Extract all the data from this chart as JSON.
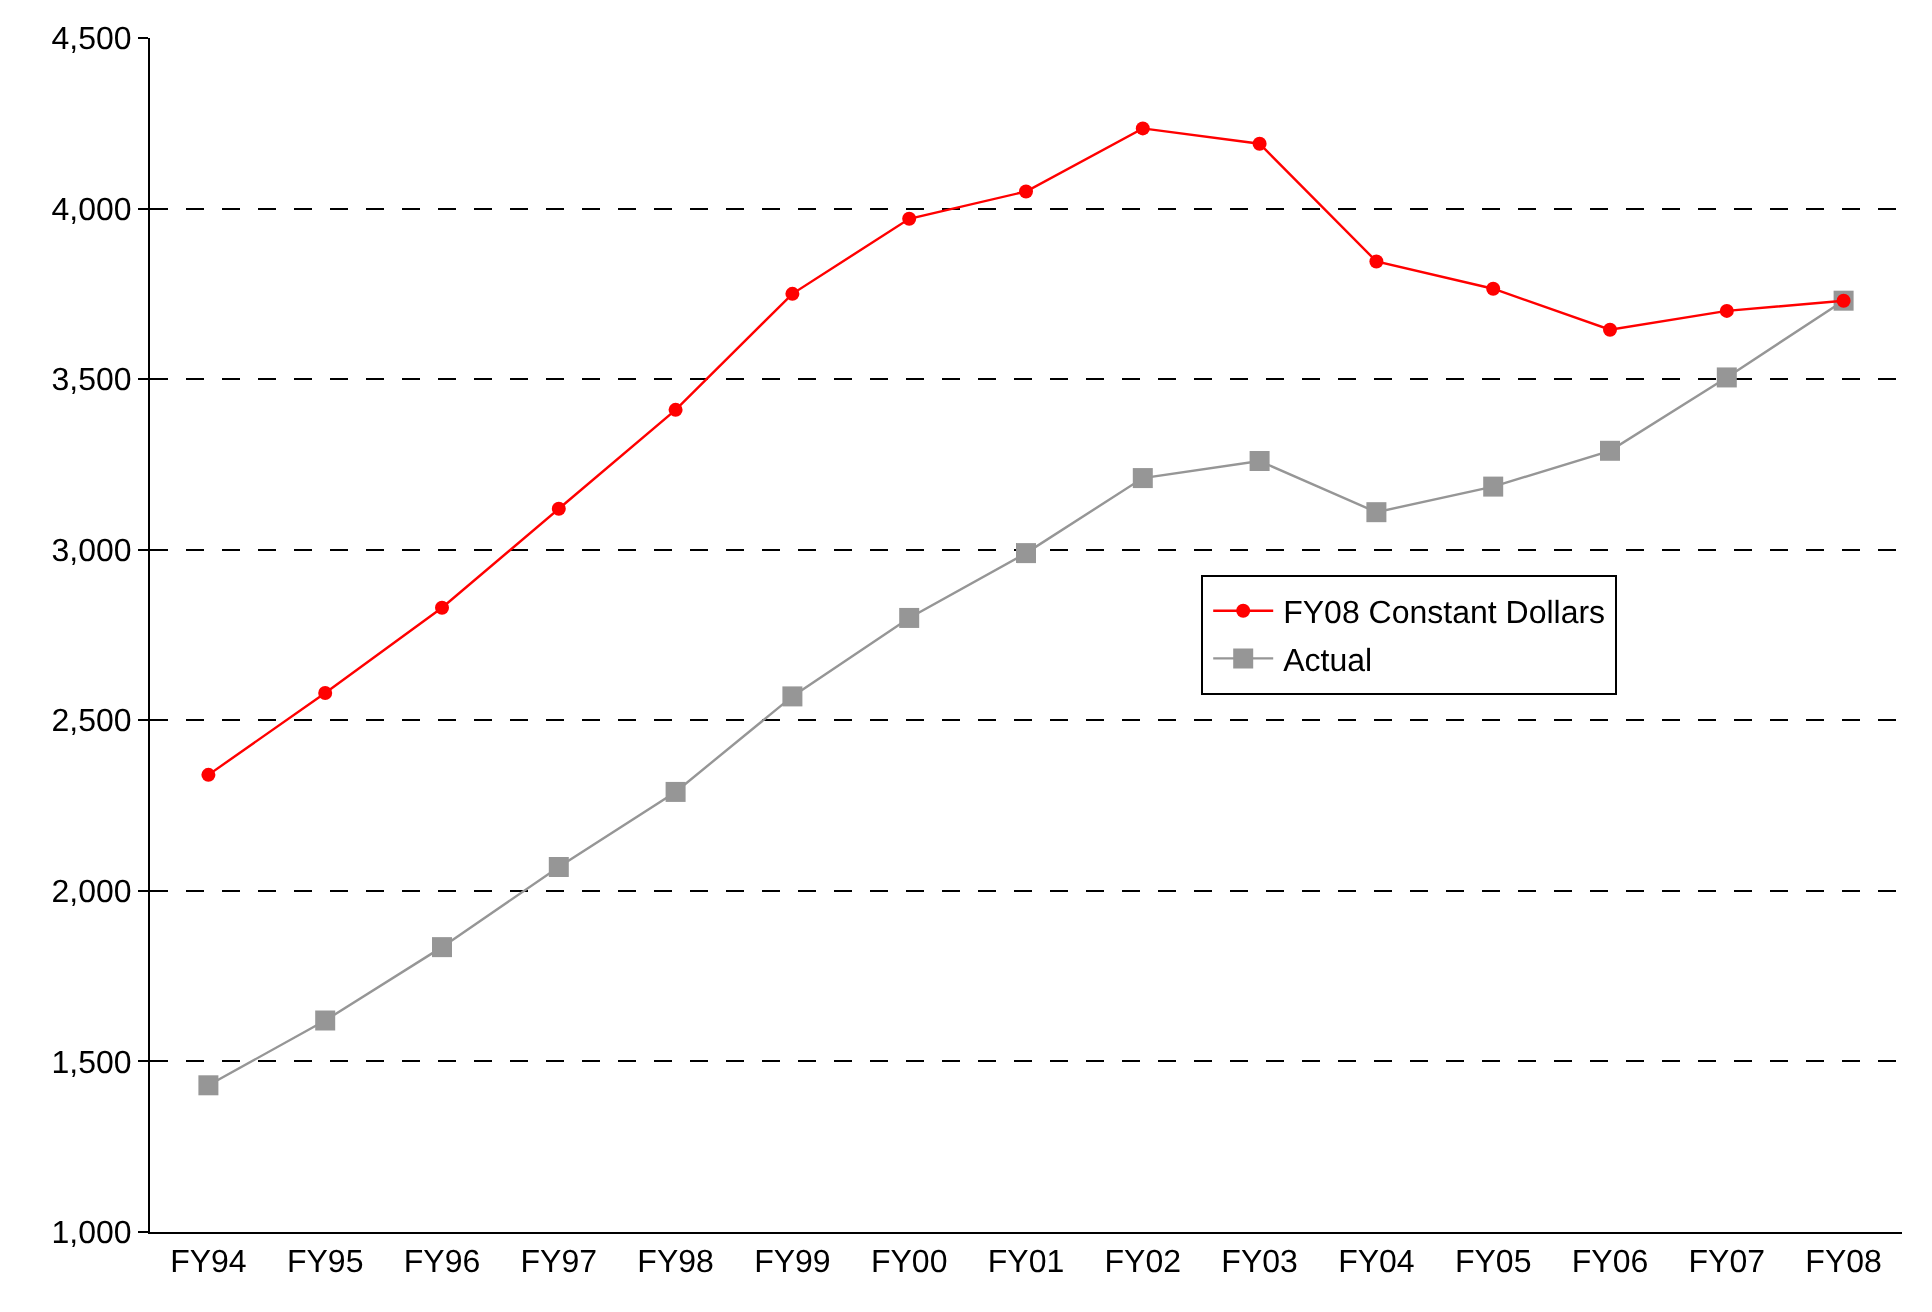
{
  "chart_data": {
    "type": "line",
    "categories": [
      "FY94",
      "FY95",
      "FY96",
      "FY97",
      "FY98",
      "FY99",
      "FY00",
      "FY01",
      "FY02",
      "FY03",
      "FY04",
      "FY05",
      "FY06",
      "FY07",
      "FY08"
    ],
    "series": [
      {
        "name": "FY08 Constant Dollars",
        "color": "#ff0000",
        "marker": "circle",
        "values": [
          2340,
          2580,
          2830,
          3120,
          3410,
          3750,
          3970,
          4050,
          4235,
          4190,
          3845,
          3765,
          3645,
          3700,
          3730
        ]
      },
      {
        "name": "Actual",
        "color": "#969696",
        "marker": "square",
        "values": [
          1430,
          1620,
          1835,
          2070,
          2290,
          2570,
          2800,
          2990,
          3210,
          3260,
          3110,
          3185,
          3290,
          3505,
          3730
        ]
      }
    ],
    "ylim": [
      1000,
      4500
    ],
    "yticks": [
      {
        "value": 1000,
        "label": "1,000"
      },
      {
        "value": 1500,
        "label": "1,500"
      },
      {
        "value": 2000,
        "label": "2,000"
      },
      {
        "value": 2500,
        "label": "2,500"
      },
      {
        "value": 3000,
        "label": "3,000"
      },
      {
        "value": 3500,
        "label": "3,500"
      },
      {
        "value": 4000,
        "label": "4,000"
      },
      {
        "value": 4500,
        "label": "4,500"
      }
    ],
    "grid": "y",
    "legend": "right"
  }
}
